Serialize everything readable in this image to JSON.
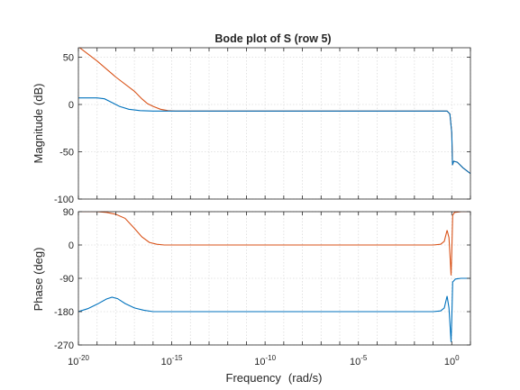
{
  "chart_data": {
    "type": "line",
    "title": "Bode plot of S (row 5)",
    "xlabel": "Frequency",
    "xunit": "(rad/s)",
    "xscale": "log",
    "xlim": [
      1e-20,
      10
    ],
    "xticks": [
      {
        "base": "10",
        "exp": "-20",
        "value": 1e-20
      },
      {
        "base": "10",
        "exp": "-15",
        "value": 1e-15
      },
      {
        "base": "10",
        "exp": "-10",
        "value": 1e-10
      },
      {
        "base": "10",
        "exp": "-5",
        "value": 1e-05
      },
      {
        "base": "10",
        "exp": "0",
        "value": 1
      }
    ],
    "grid": true,
    "subplots": [
      {
        "ylabel": "Magnitude (dB)",
        "ylim": [
          -100,
          60
        ],
        "yticks": [
          "50",
          "0",
          "-50",
          "-100"
        ],
        "ytick_values": [
          50,
          0,
          -50,
          -100
        ],
        "series": [
          {
            "color": "#D95319",
            "points": [
              [
                -20,
                61
              ],
              [
                -19,
                46
              ],
              [
                -18,
                29
              ],
              [
                -17,
                14
              ],
              [
                -16.6,
                6
              ],
              [
                -16.3,
                1
              ],
              [
                -16,
                -2
              ],
              [
                -15.6,
                -5
              ],
              [
                -15.2,
                -6.5
              ],
              [
                -14.8,
                -7
              ],
              [
                -10,
                -7
              ],
              [
                -5,
                -7
              ],
              [
                -1,
                -7
              ],
              [
                -0.25,
                -7
              ],
              [
                -0.1,
                -10
              ],
              [
                0,
                -30
              ],
              [
                0.04,
                -64
              ],
              [
                0.1,
                -60
              ],
              [
                0.3,
                -61
              ],
              [
                0.6,
                -67
              ],
              [
                1,
                -73
              ]
            ]
          },
          {
            "color": "#0072BD",
            "points": [
              [
                -20,
                7
              ],
              [
                -19,
                7
              ],
              [
                -18.6,
                6
              ],
              [
                -18.2,
                2
              ],
              [
                -17.8,
                -2
              ],
              [
                -17.3,
                -5
              ],
              [
                -16.7,
                -6.5
              ],
              [
                -16,
                -7
              ],
              [
                -15,
                -7
              ],
              [
                -10,
                -7
              ],
              [
                -5,
                -7
              ],
              [
                -1,
                -7
              ],
              [
                -0.25,
                -7
              ],
              [
                -0.1,
                -10
              ],
              [
                0,
                -30
              ],
              [
                0.04,
                -64
              ],
              [
                0.1,
                -60
              ],
              [
                0.3,
                -61
              ],
              [
                0.6,
                -67
              ],
              [
                1,
                -73
              ]
            ]
          }
        ]
      },
      {
        "ylabel": "Phase (deg)",
        "ylim": [
          -270,
          90
        ],
        "yticks": [
          "90",
          "0",
          "-90",
          "-180",
          "-270"
        ],
        "ytick_values": [
          90,
          0,
          -90,
          -180,
          -270
        ],
        "series": [
          {
            "color": "#D95319",
            "points": [
              [
                -20,
                90
              ],
              [
                -19,
                90
              ],
              [
                -18.5,
                88
              ],
              [
                -18,
                83
              ],
              [
                -17.5,
                72
              ],
              [
                -17,
                45
              ],
              [
                -16.6,
                22
              ],
              [
                -16.2,
                7
              ],
              [
                -15.8,
                2
              ],
              [
                -15.4,
                0
              ],
              [
                -15,
                0
              ],
              [
                -10,
                0
              ],
              [
                -5,
                0
              ],
              [
                -1,
                0
              ],
              [
                -0.6,
                2
              ],
              [
                -0.4,
                10
              ],
              [
                -0.25,
                40
              ],
              [
                -0.15,
                20
              ],
              [
                -0.08,
                -40
              ],
              [
                -0.04,
                -82
              ],
              [
                0,
                -20
              ],
              [
                0.05,
                80
              ],
              [
                0.15,
                88
              ],
              [
                0.5,
                90
              ],
              [
                1,
                90
              ]
            ]
          },
          {
            "color": "#0072BD",
            "points": [
              [
                -20,
                -180
              ],
              [
                -19.5,
                -172
              ],
              [
                -19,
                -160
              ],
              [
                -18.5,
                -146
              ],
              [
                -18.2,
                -141
              ],
              [
                -17.9,
                -145
              ],
              [
                -17.5,
                -158
              ],
              [
                -17,
                -170
              ],
              [
                -16.5,
                -176
              ],
              [
                -16,
                -180
              ],
              [
                -15,
                -180
              ],
              [
                -10,
                -180
              ],
              [
                -5,
                -180
              ],
              [
                -1,
                -180
              ],
              [
                -0.6,
                -178
              ],
              [
                -0.4,
                -170
              ],
              [
                -0.25,
                -138
              ],
              [
                -0.15,
                -170
              ],
              [
                -0.08,
                -225
              ],
              [
                -0.04,
                -262
              ],
              [
                0,
                -200
              ],
              [
                0.05,
                -100
              ],
              [
                0.2,
                -92
              ],
              [
                0.5,
                -90
              ],
              [
                1,
                -90
              ]
            ]
          }
        ]
      }
    ]
  }
}
